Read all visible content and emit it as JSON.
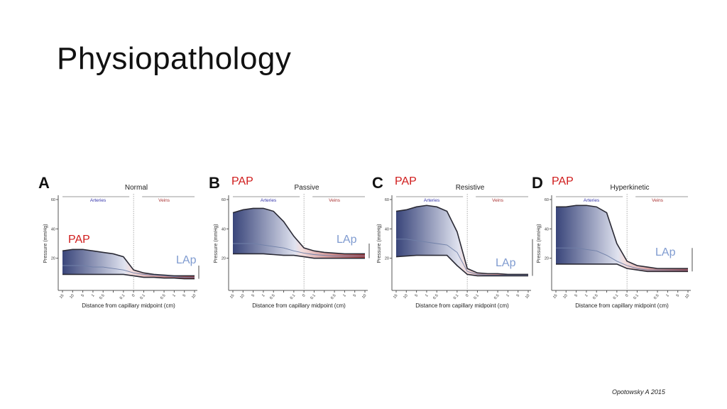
{
  "title": "Physiopathology",
  "citation": "Opotowsky A 2015",
  "colors": {
    "pap": "#d01c1c",
    "lap": "#7f9bd0",
    "arteries": "#3333aa",
    "veins": "#aa3333"
  },
  "chart_data": [
    {
      "type": "area",
      "letter": "A",
      "title": "Normal",
      "overlay_pap": "",
      "overlay_lap": "LAp",
      "ylabel": "Pressure (mmHg)",
      "xlabel": "Distance from capillary midpoint (cm)",
      "yticks": [
        20,
        40,
        60
      ],
      "ylim": [
        0,
        60
      ],
      "regions": [
        "Arteries",
        "Veins"
      ],
      "tpg_label": "TPG",
      "x": [
        "15",
        "10",
        "5",
        "1",
        "0.5",
        "",
        "0.1",
        "0",
        "0.1",
        "",
        "0.5",
        "1",
        "5",
        "10"
      ],
      "upper": [
        25,
        26,
        26,
        25,
        24,
        23,
        21,
        12,
        10,
        9,
        8.5,
        8,
        8,
        8
      ],
      "mean": [
        15,
        15,
        15,
        14,
        14,
        13,
        12,
        10,
        9,
        8.5,
        8,
        7.5,
        7,
        7
      ],
      "lower": [
        9,
        9,
        9,
        9,
        9,
        9,
        9,
        8,
        7,
        7,
        6.5,
        6.5,
        6,
        6
      ]
    },
    {
      "type": "area",
      "letter": "B",
      "title": "Passive",
      "overlay_pap": "PAP",
      "overlay_lap": "LAp",
      "ylabel": "Pressure (mmHg)",
      "xlabel": "Distance from capillary midpoint (cm)",
      "yticks": [
        20,
        40,
        60
      ],
      "ylim": [
        0,
        60
      ],
      "regions": [
        "Arteries",
        "Veins"
      ],
      "tpg_label": "TPG",
      "x": [
        "15",
        "10",
        "5",
        "1",
        "0.5",
        "",
        "0.1",
        "0",
        "0.1",
        "",
        "0.5",
        "1",
        "5",
        "10"
      ],
      "upper": [
        51,
        53,
        54,
        54,
        52,
        45,
        35,
        27,
        25,
        24,
        23.5,
        23,
        23,
        23
      ],
      "mean": [
        30,
        30,
        30,
        29,
        28,
        27,
        25,
        23.5,
        22.5,
        22,
        21.5,
        21.5,
        21.5,
        21.5
      ],
      "lower": [
        23,
        23,
        23,
        23,
        22.5,
        22,
        22,
        21,
        20,
        20,
        20,
        20,
        20,
        20
      ]
    },
    {
      "type": "area",
      "letter": "C",
      "title": "Resistive",
      "overlay_pap": "PAP",
      "overlay_lap": "LAp",
      "ylabel": "Pressure (mmHg)",
      "xlabel": "Distance from capillary midpoint (cm)",
      "yticks": [
        20,
        40,
        60
      ],
      "ylim": [
        0,
        60
      ],
      "regions": [
        "Arteries",
        "Veins"
      ],
      "tpg_label": "TPG",
      "x": [
        "15",
        "10",
        "5",
        "1",
        "0.5",
        "",
        "0.1",
        "0",
        "0.1",
        "",
        "0.5",
        "1",
        "5",
        "10"
      ],
      "upper": [
        52,
        53,
        55,
        56,
        55,
        52,
        38,
        13,
        10,
        9.5,
        9.5,
        9,
        9,
        9
      ],
      "mean": [
        33,
        33,
        32,
        31,
        30,
        29,
        24,
        11,
        9,
        8.5,
        8.5,
        8.5,
        8.5,
        8.5
      ],
      "lower": [
        21,
        21.5,
        22,
        22,
        22,
        22,
        15,
        9,
        8,
        8,
        8,
        8,
        8,
        8
      ]
    },
    {
      "type": "area",
      "letter": "D",
      "title": "Hyperkinetic",
      "overlay_pap": "PAP",
      "overlay_lap": "LAp",
      "ylabel": "Pressure (mmHg)",
      "xlabel": "Distance from capillary midpoint (cm)",
      "yticks": [
        20,
        40,
        60
      ],
      "ylim": [
        0,
        60
      ],
      "regions": [
        "Arteries",
        "Veins"
      ],
      "tpg_label": "TPG",
      "x": [
        "15",
        "10",
        "5",
        "1",
        "0.5",
        "",
        "0.1",
        "0",
        "0.1",
        "",
        "0.5",
        "1",
        "5",
        "10"
      ],
      "upper": [
        55,
        55,
        56,
        56,
        55,
        51,
        30,
        18,
        15,
        14,
        13,
        13,
        13,
        13
      ],
      "mean": [
        27,
        27,
        27,
        26,
        25,
        22,
        18,
        15,
        13,
        12,
        12,
        12,
        12,
        12
      ],
      "lower": [
        16,
        16,
        16,
        16,
        16,
        16,
        16,
        13,
        12,
        11,
        11,
        11,
        11,
        11
      ]
    }
  ],
  "overlays": {
    "panel_a_pap": "PAP"
  }
}
